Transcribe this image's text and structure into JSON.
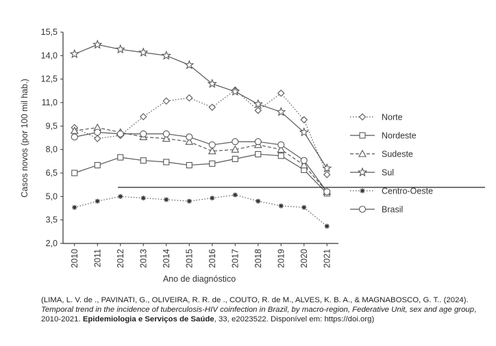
{
  "chart_data": {
    "type": "line",
    "xlabel": "Ano de diagnóstico",
    "ylabel": "Casos novos (por 100 mil hab.)",
    "ylim": [
      2.0,
      15.5
    ],
    "yticks": [
      "2,0",
      "3,5",
      "5,0",
      "6,5",
      "8,0",
      "9,5",
      "11,0",
      "12,5",
      "14,0",
      "15,5"
    ],
    "x": [
      "2010",
      "2011",
      "2012",
      "2013",
      "2014",
      "2015",
      "2016",
      "2017",
      "2018",
      "2019",
      "2020",
      "2021"
    ],
    "grid": false,
    "legend_position": "right",
    "series": [
      {
        "name": "Norte",
        "marker": "diamond",
        "dash": "dotted",
        "values": [
          9.4,
          8.7,
          8.9,
          10.1,
          11.1,
          11.3,
          10.7,
          11.8,
          10.5,
          11.6,
          9.9,
          6.4
        ]
      },
      {
        "name": "Nordeste",
        "marker": "square",
        "dash": "solid",
        "values": [
          6.5,
          7.0,
          7.5,
          7.3,
          7.2,
          7.0,
          7.1,
          7.4,
          7.7,
          7.6,
          6.7,
          5.2
        ]
      },
      {
        "name": "Sudeste",
        "marker": "triangle",
        "dash": "dashed",
        "values": [
          9.2,
          9.4,
          9.1,
          8.8,
          8.7,
          8.5,
          7.9,
          8.0,
          8.3,
          8.0,
          7.0,
          5.3
        ]
      },
      {
        "name": "Sul",
        "marker": "star",
        "dash": "solid",
        "values": [
          14.1,
          14.7,
          14.4,
          14.2,
          14.0,
          13.4,
          12.2,
          11.7,
          10.9,
          10.4,
          9.1,
          6.8
        ]
      },
      {
        "name": "Centro-Oeste",
        "marker": "asterisk",
        "dash": "dotted",
        "values": [
          4.3,
          4.7,
          5.0,
          4.9,
          4.8,
          4.7,
          4.9,
          5.1,
          4.7,
          4.4,
          4.3,
          3.1
        ]
      },
      {
        "name": "Brasil",
        "marker": "circle",
        "dash": "solid",
        "values": [
          8.8,
          9.1,
          9.0,
          9.0,
          9.0,
          8.8,
          8.3,
          8.5,
          8.5,
          8.3,
          7.3,
          5.3
        ]
      }
    ]
  },
  "caption": {
    "part1": "(LIMA, L. V. de ., PAVINATI, G., OLIVEIRA, R. R. de ., COUTO, R. de M., ALVES, K. B. A., & MAGNABOSCO, G. T.. (2024). ",
    "title_italic": "Temporal trend in the incidence of tuberculosis-HIV coinfection in Brazil, by macro-region, Federative Unit, sex and age group",
    "part2": ", 2010-2021. ",
    "journal_bold": "Epidemiologia e Serviços de Saúde",
    "part3": ", 33, e2023522. Disponível em: https://doi.org)"
  }
}
